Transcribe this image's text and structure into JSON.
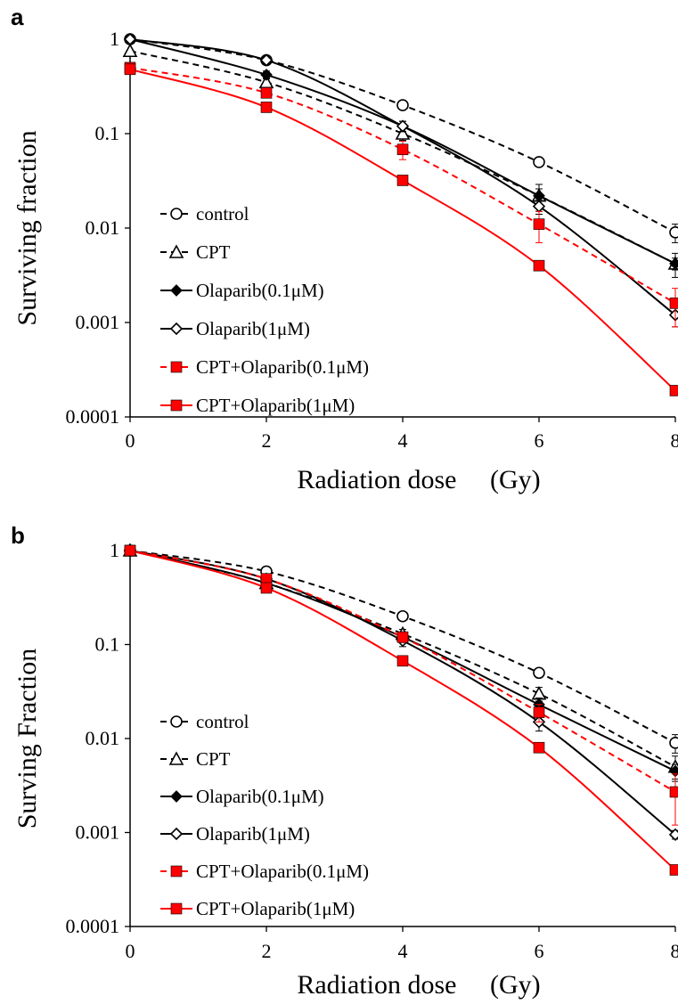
{
  "chart_data": [
    {
      "panel": "a",
      "type": "line",
      "xlabel": "Radiation dose     (Gy)",
      "ylabel": "Surviving fraction",
      "xlim": [
        0,
        8
      ],
      "ylim": [
        0.0001,
        1
      ],
      "yscale": "log",
      "xticks": [
        "0",
        "2",
        "4",
        "6",
        "8"
      ],
      "yticks": [
        "1",
        "0.1",
        "0.01",
        "0.001",
        "0.0001"
      ],
      "legend_position": "bottom-left",
      "x": [
        0,
        2,
        4,
        6,
        8
      ],
      "series": [
        {
          "name": "control",
          "color": "#000000",
          "dash": "dashed",
          "marker": "open-circle",
          "values": [
            1,
            0.6,
            0.2,
            0.05,
            0.009
          ],
          "err": [
            0,
            0.05,
            0.02,
            0.005,
            0.002
          ]
        },
        {
          "name": "CPT",
          "color": "#000000",
          "dash": "dashed",
          "marker": "open-triangle",
          "values": [
            0.75,
            0.35,
            0.1,
            0.022,
            0.0042
          ],
          "err": [
            0,
            0.04,
            0.015,
            0.004,
            0.0012
          ]
        },
        {
          "name": "Olaparib(0.1μM)",
          "color": "#000000",
          "dash": "solid",
          "marker": "filled-diamond",
          "values": [
            1,
            0.42,
            0.12,
            0.022,
            0.0042
          ],
          "err": [
            0,
            0.04,
            0.015,
            0.007,
            0.0006
          ]
        },
        {
          "name": "Olaparib(1μM)",
          "color": "#000000",
          "dash": "solid",
          "marker": "open-diamond",
          "values": [
            1,
            0.6,
            0.12,
            0.017,
            0.0012
          ],
          "err": [
            0,
            0.05,
            0.015,
            0.003,
            0.0003
          ]
        },
        {
          "name": "CPT+Olaparib(0.1μM)",
          "color": "#ff0000",
          "dash": "dashed",
          "marker": "filled-square",
          "values": [
            0.5,
            0.27,
            0.068,
            0.011,
            0.0016
          ],
          "err": [
            0,
            0.03,
            0.015,
            0.004,
            0.0007
          ]
        },
        {
          "name": "CPT+Olaparib(1μM)",
          "color": "#ff0000",
          "dash": "solid",
          "marker": "filled-square",
          "values": [
            0.48,
            0.19,
            0.032,
            0.004,
            0.00019
          ],
          "err": [
            0,
            0,
            0,
            0,
            0
          ]
        }
      ]
    },
    {
      "panel": "b",
      "type": "line",
      "xlabel": "Radiation dose     (Gy)",
      "ylabel": "Surving Fraction",
      "xlim": [
        0,
        8
      ],
      "ylim": [
        0.0001,
        1
      ],
      "yscale": "log",
      "xticks": [
        "0",
        "2",
        "4",
        "6",
        "8"
      ],
      "yticks": [
        "1",
        "0.1",
        "0.01",
        "0.001",
        "0.0001"
      ],
      "legend_position": "bottom-left",
      "x": [
        0,
        2,
        4,
        6,
        8
      ],
      "series": [
        {
          "name": "control",
          "color": "#000000",
          "dash": "dashed",
          "marker": "open-circle",
          "values": [
            1,
            0.6,
            0.2,
            0.05,
            0.009
          ],
          "err": [
            0,
            0.05,
            0.02,
            0.005,
            0.002
          ]
        },
        {
          "name": "CPT",
          "color": "#000000",
          "dash": "dashed",
          "marker": "open-triangle",
          "values": [
            1,
            0.45,
            0.13,
            0.03,
            0.005
          ],
          "err": [
            0,
            0.04,
            0.015,
            0.005,
            0.0015
          ]
        },
        {
          "name": "Olaparib(0.1μM)",
          "color": "#000000",
          "dash": "solid",
          "marker": "filled-diamond",
          "values": [
            1,
            0.45,
            0.12,
            0.023,
            0.0045
          ],
          "err": [
            0,
            0.04,
            0.015,
            0.004,
            0.0008
          ]
        },
        {
          "name": "Olaparib(1μM)",
          "color": "#000000",
          "dash": "solid",
          "marker": "open-diamond",
          "values": [
            1,
            0.5,
            0.11,
            0.015,
            0.00095
          ],
          "err": [
            0,
            0.04,
            0.015,
            0.003,
            0.0001
          ]
        },
        {
          "name": "CPT+Olaparib(0.1μM)",
          "color": "#ff0000",
          "dash": "dashed",
          "marker": "filled-square",
          "values": [
            1,
            0.5,
            0.12,
            0.019,
            0.0027
          ],
          "err": [
            0,
            0.04,
            0.015,
            0.004,
            0.0015
          ]
        },
        {
          "name": "CPT+Olaparib(1μM)",
          "color": "#ff0000",
          "dash": "solid",
          "marker": "filled-square",
          "values": [
            1,
            0.4,
            0.067,
            0.008,
            0.0004
          ],
          "err": [
            0,
            0,
            0,
            0,
            0
          ]
        }
      ]
    }
  ]
}
